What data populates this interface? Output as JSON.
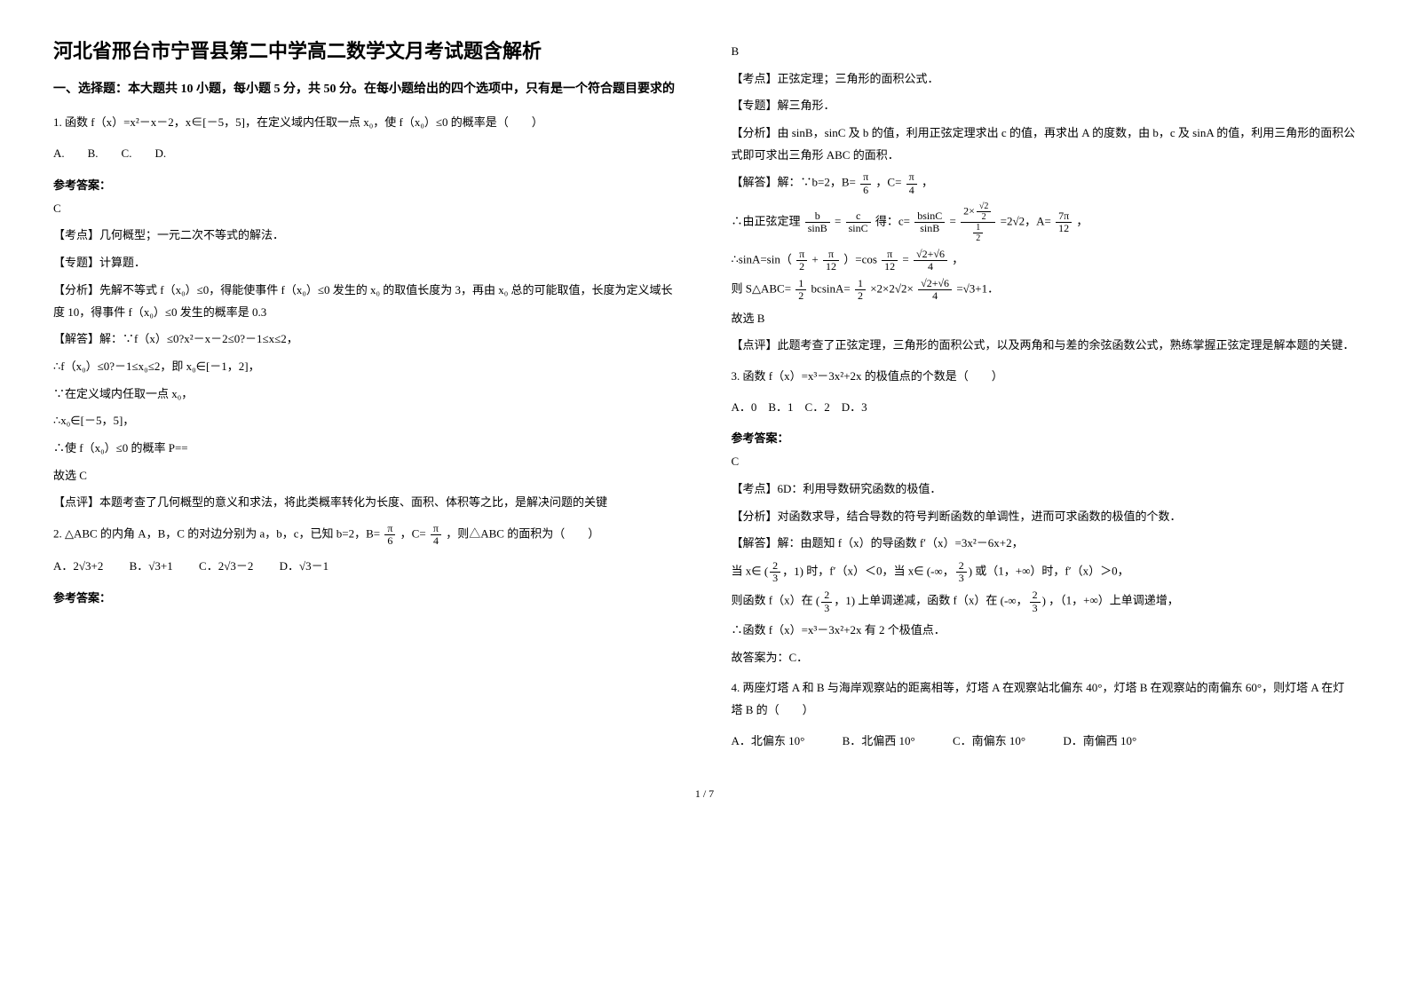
{
  "title": "河北省邢台市宁晋县第二中学高二数学文月考试题含解析",
  "section1_instruct": "一、选择题：本大题共 10 小题，每小题 5 分，共 50 分。在每小题给出的四个选项中，只有是一个符合题目要求的",
  "q1": {
    "stem": "1. 函数 f（x）=x²－x－2，x∈[－5，5]，在定义域内任取一点 x₀，使 f（x₀）≤0 的概率是（　　）",
    "options": "A.　　B.　　C.　　D.",
    "ans_label": "参考答案：",
    "ans_letter": "C",
    "kaodian": "【考点】几何概型；一元二次不等式的解法．",
    "zhuanti": "【专题】计算题．",
    "fenxi": "【分析】先解不等式 f（x₀）≤0，得能使事件 f（x₀）≤0 发生的 x₀ 的取值长度为 3，再由 x₀ 总的可能取值，长度为定义域长度 10，得事件 f（x₀）≤0 发生的概率是 0.3",
    "jieda1": "【解答】解：∵f（x）≤0?x²－x－2≤0?－1≤x≤2，",
    "jieda2": "∴f（x₀）≤0?－1≤x₀≤2，即 x₀∈[－1，2]，",
    "jieda3": "∵在定义域内任取一点 x₀，",
    "jieda4": "∴x₀∈[－5，5]，",
    "jieda5": "∴使 f（x₀）≤0 的概率 P==",
    "jieda6": "故选 C",
    "dianping": "【点评】本题考查了几何概型的意义和求法，将此类概率转化为长度、面积、体积等之比，是解决问题的关键"
  },
  "q2": {
    "stem_a": "2. △ABC 的内角 A，B，C 的对边分别为 a，b，c，已知 b=2，B= ",
    "stem_b": "，C= ",
    "stem_c": "，则△ABC 的面积为（　　）",
    "optA": "A．2√3+2",
    "optB": "B．√3+1",
    "optC": "C．2√3－2",
    "optD": "D．√3－1",
    "ans_label": "参考答案：",
    "ans_letter": "B",
    "kaodian": "【考点】正弦定理；三角形的面积公式．",
    "zhuanti": "【专题】解三角形．",
    "fenxi": "【分析】由 sinB，sinC 及 b 的值，利用正弦定理求出 c 的值，再求出 A 的度数，由 b，c 及 sinA 的值，利用三角形的面积公式即可求出三角形 ABC 的面积．",
    "jieda1a": "【解答】解：∵b=2，B= ",
    "jieda1b": "，C= ",
    "jieda1c": "，",
    "jieda2a": "∴由正弦定理",
    "jieda2b": "= ",
    "jieda2c": "得：c= ",
    "jieda2d": " = ",
    "jieda2e": " =2√2，A= ",
    "jieda2f": "，",
    "jieda3a": "∴sinA=sin（",
    "jieda3b": " + ",
    "jieda3c": "）=cos",
    "jieda3d": " = ",
    "jieda3e": "，",
    "jieda4a": "则 S△ABC= ",
    "jieda4b": "bcsinA= ",
    "jieda4c": "×2×2√2× ",
    "jieda4d": " =√3+1．",
    "jieda5": "故选 B",
    "dianping": "【点评】此题考查了正弦定理，三角形的面积公式，以及两角和与差的余弦函数公式，熟练掌握正弦定理是解本题的关键．"
  },
  "q3": {
    "stem": "3. 函数 f（x）=x³－3x²+2x 的极值点的个数是（　　）",
    "options": "A．0　B．1　C．2　D．3",
    "ans_label": "参考答案：",
    "ans_letter": "C",
    "kaodian": "【考点】6D：利用导数研究函数的极值．",
    "fenxi": "【分析】对函数求导，结合导数的符号判断函数的单调性，进而可求函数的极值的个数．",
    "jieda1": "【解答】解：由题知 f（x）的导函数 f′（x）=3x²－6x+2，",
    "jieda2a": "当 x∈ ",
    "jieda2b": " 时，f′（x）＜0，当 x∈ ",
    "jieda2c": " 或（1，+∞）时，f′（x）＞0，",
    "jieda3a": "则函数 f（x）在 ",
    "jieda3b": " 上单调递减，函数 f（x）在 ",
    "jieda3c": "，（1，+∞）上单调递增，",
    "jieda4": "∴函数 f（x）=x³－3x²+2x 有 2 个极值点．",
    "jieda5": "故答案为：C．"
  },
  "q4": {
    "stem": "4. 两座灯塔 A 和 B 与海岸观察站的距离相等，灯塔 A 在观察站北偏东 40°，灯塔 B 在观察站的南偏东 60°，则灯塔 A 在灯塔 B 的（　　）",
    "optA": "A．北偏东 10°",
    "optB": "B．北偏西 10°",
    "optC": "C．南偏东 10°",
    "optD": "D．南偏西 10°"
  },
  "pagenum": "1 / 7"
}
